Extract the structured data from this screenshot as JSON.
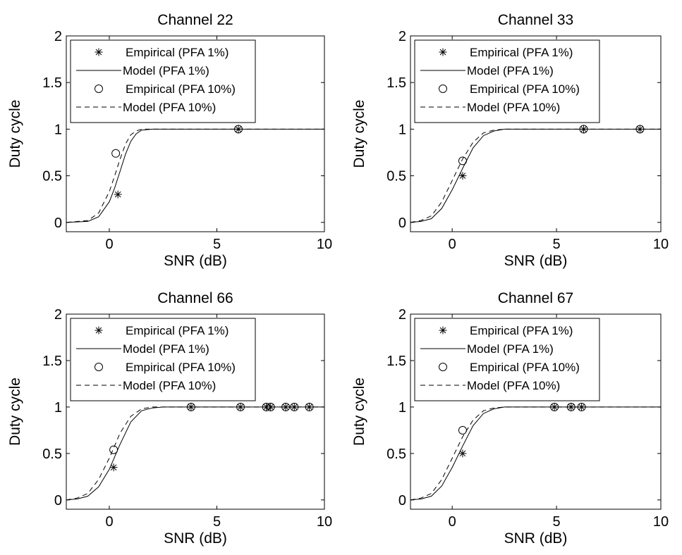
{
  "chart_data": [
    {
      "type": "line",
      "title": "Channel 22",
      "xlabel": "SNR (dB)",
      "ylabel": "Duty cycle",
      "xlim": [
        -2,
        10
      ],
      "ylim": [
        -0.1,
        2
      ],
      "xticks": [
        0,
        5,
        10
      ],
      "yticks": [
        0,
        0.5,
        1,
        1.5,
        2
      ],
      "legend_location": "top-left",
      "legend": [
        "Empirical (PFA 1%)",
        "Model (PFA 1%)",
        "Empirical (PFA 10%)",
        "Model (PFA 10%)"
      ],
      "series": [
        {
          "name": "Empirical (PFA 1%)",
          "kind": "marker",
          "marker": "asterisk",
          "x": [
            0.4,
            6.0
          ],
          "y": [
            0.3,
            1.0
          ]
        },
        {
          "name": "Model (PFA 1%)",
          "kind": "line",
          "style": "solid",
          "x": [
            -2,
            -1,
            -0.5,
            0,
            0.25,
            0.5,
            0.75,
            1,
            1.25,
            1.5,
            2,
            3,
            10
          ],
          "y": [
            0,
            0.01,
            0.06,
            0.22,
            0.37,
            0.55,
            0.73,
            0.87,
            0.95,
            0.99,
            1,
            1,
            1
          ]
        },
        {
          "name": "Empirical (PFA 10%)",
          "kind": "marker",
          "marker": "circle",
          "x": [
            0.3,
            6.0
          ],
          "y": [
            0.74,
            1.0
          ]
        },
        {
          "name": "Model (PFA 10%)",
          "kind": "line",
          "style": "dashed",
          "x": [
            -2,
            -1,
            -0.5,
            0,
            0.25,
            0.5,
            0.75,
            1,
            1.25,
            1.5,
            2,
            3,
            10
          ],
          "y": [
            0,
            0.02,
            0.1,
            0.33,
            0.5,
            0.68,
            0.84,
            0.94,
            0.98,
            1,
            1,
            1,
            1
          ]
        }
      ]
    },
    {
      "type": "line",
      "title": "Channel 33",
      "xlabel": "SNR (dB)",
      "ylabel": "Duty cycle",
      "xlim": [
        -2,
        10
      ],
      "ylim": [
        -0.1,
        2
      ],
      "xticks": [
        0,
        5,
        10
      ],
      "yticks": [
        0,
        0.5,
        1,
        1.5,
        2
      ],
      "legend_location": "top-left",
      "legend": [
        "Empirical (PFA 1%)",
        "Model (PFA 1%)",
        "Empirical (PFA 10%)",
        "Model (PFA 10%)"
      ],
      "series": [
        {
          "name": "Empirical (PFA 1%)",
          "kind": "marker",
          "marker": "asterisk",
          "x": [
            0.5,
            6.3,
            9.0
          ],
          "y": [
            0.5,
            1.0,
            1.0
          ]
        },
        {
          "name": "Model (PFA 1%)",
          "kind": "line",
          "style": "solid",
          "x": [
            -2,
            -1.5,
            -1,
            -0.5,
            0,
            0.5,
            1,
            1.5,
            2,
            2.5,
            3,
            10
          ],
          "y": [
            0,
            0.01,
            0.04,
            0.15,
            0.35,
            0.58,
            0.8,
            0.93,
            0.98,
            1,
            1,
            1
          ]
        },
        {
          "name": "Empirical (PFA 10%)",
          "kind": "marker",
          "marker": "circle",
          "x": [
            0.5,
            6.3,
            9.0
          ],
          "y": [
            0.66,
            1.0,
            1.0
          ]
        },
        {
          "name": "Model (PFA 10%)",
          "kind": "line",
          "style": "dashed",
          "x": [
            -2,
            -1.5,
            -1,
            -0.5,
            0,
            0.5,
            1,
            1.5,
            2,
            2.5,
            3,
            10
          ],
          "y": [
            0,
            0.02,
            0.07,
            0.22,
            0.45,
            0.68,
            0.86,
            0.96,
            0.99,
            1,
            1,
            1
          ]
        }
      ]
    },
    {
      "type": "line",
      "title": "Channel 66",
      "xlabel": "SNR (dB)",
      "ylabel": "Duty cycle",
      "xlim": [
        -2,
        10
      ],
      "ylim": [
        -0.1,
        2
      ],
      "xticks": [
        0,
        5,
        10
      ],
      "yticks": [
        0,
        0.5,
        1,
        1.5,
        2
      ],
      "legend_location": "top-left",
      "legend": [
        "Empirical (PFA 1%)",
        "Model (PFA 1%)",
        "Empirical (PFA 10%)",
        "Model (PFA 10%)"
      ],
      "series": [
        {
          "name": "Empirical (PFA 1%)",
          "kind": "marker",
          "marker": "asterisk",
          "x": [
            0.2,
            3.8,
            6.1,
            7.3,
            7.5,
            8.2,
            8.6,
            9.3
          ],
          "y": [
            0.35,
            1.0,
            1.0,
            1.0,
            1.0,
            1.0,
            1.0,
            1.0
          ]
        },
        {
          "name": "Model (PFA 1%)",
          "kind": "line",
          "style": "solid",
          "x": [
            -2,
            -1.5,
            -1,
            -0.5,
            0,
            0.5,
            1,
            1.5,
            2,
            2.5,
            3,
            10
          ],
          "y": [
            0,
            0.01,
            0.04,
            0.14,
            0.33,
            0.6,
            0.84,
            0.96,
            0.99,
            1,
            1,
            1
          ]
        },
        {
          "name": "Empirical (PFA 10%)",
          "kind": "marker",
          "marker": "circle",
          "x": [
            0.2,
            3.8,
            6.1,
            7.3,
            7.5,
            8.2,
            8.6,
            9.3
          ],
          "y": [
            0.54,
            1.0,
            1.0,
            1.0,
            1.0,
            1.0,
            1.0,
            1.0
          ]
        },
        {
          "name": "Model (PFA 10%)",
          "kind": "line",
          "style": "dashed",
          "x": [
            -2,
            -1.5,
            -1,
            -0.5,
            0,
            0.5,
            1,
            1.5,
            2,
            2.5,
            3,
            10
          ],
          "y": [
            0,
            0.02,
            0.07,
            0.22,
            0.45,
            0.72,
            0.9,
            0.98,
            1,
            1,
            1,
            1
          ]
        }
      ]
    },
    {
      "type": "line",
      "title": "Channel 67",
      "xlabel": "SNR (dB)",
      "ylabel": "Duty cycle",
      "xlim": [
        -2,
        10
      ],
      "ylim": [
        -0.1,
        2
      ],
      "xticks": [
        0,
        5,
        10
      ],
      "yticks": [
        0,
        0.5,
        1,
        1.5,
        2
      ],
      "legend_location": "top-left",
      "legend": [
        "Empirical (PFA 1%)",
        "Model (PFA 1%)",
        "Empirical (PFA 10%)",
        "Model (PFA 10%)"
      ],
      "series": [
        {
          "name": "Empirical (PFA 1%)",
          "kind": "marker",
          "marker": "asterisk",
          "x": [
            0.5,
            4.9,
            5.7,
            6.2
          ],
          "y": [
            0.5,
            1.0,
            1.0,
            1.0
          ]
        },
        {
          "name": "Model (PFA 1%)",
          "kind": "line",
          "style": "solid",
          "x": [
            -2,
            -1.5,
            -1,
            -0.5,
            0,
            0.5,
            1,
            1.5,
            2,
            2.5,
            3,
            10
          ],
          "y": [
            0,
            0.01,
            0.04,
            0.15,
            0.35,
            0.58,
            0.8,
            0.93,
            0.98,
            1,
            1,
            1
          ]
        },
        {
          "name": "Empirical (PFA 10%)",
          "kind": "marker",
          "marker": "circle",
          "x": [
            0.5,
            4.9,
            5.7,
            6.2
          ],
          "y": [
            0.75,
            1.0,
            1.0,
            1.0
          ]
        },
        {
          "name": "Model (PFA 10%)",
          "kind": "line",
          "style": "dashed",
          "x": [
            -2,
            -1.5,
            -1,
            -0.5,
            0,
            0.5,
            1,
            1.5,
            2,
            2.5,
            3,
            10
          ],
          "y": [
            0,
            0.02,
            0.07,
            0.22,
            0.45,
            0.68,
            0.86,
            0.96,
            0.99,
            1,
            1,
            1
          ]
        }
      ]
    }
  ]
}
